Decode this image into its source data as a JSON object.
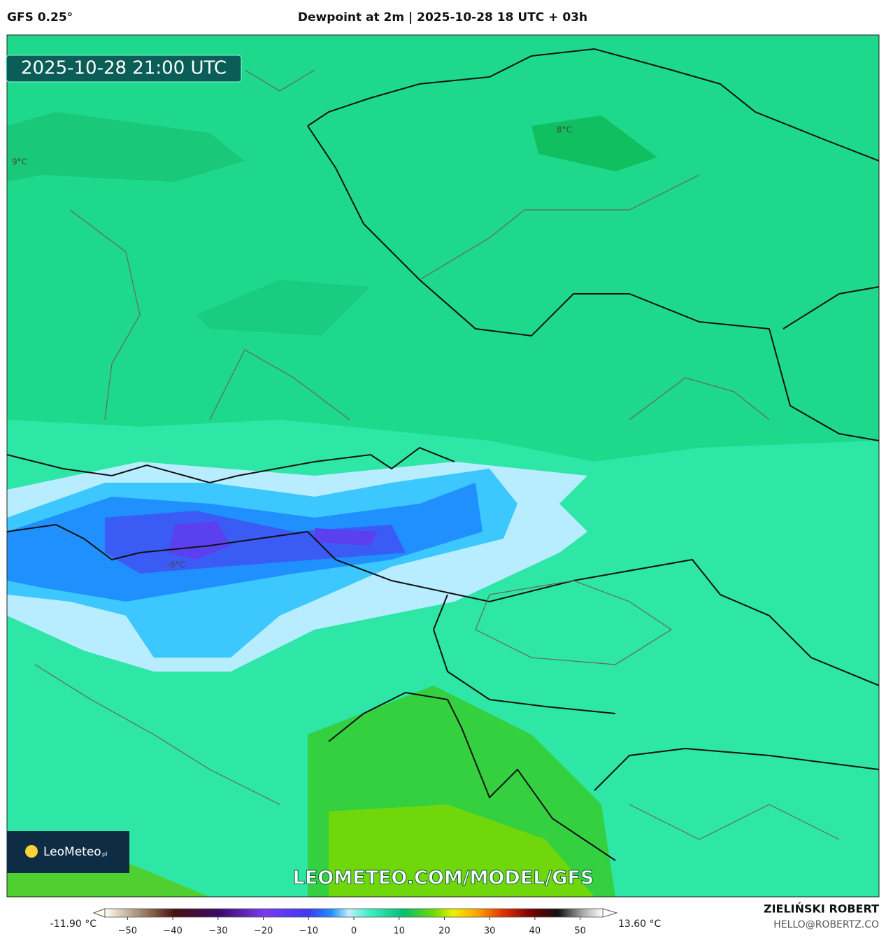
{
  "header": {
    "left": "GFS 0.25°",
    "title": "Dewpoint at 2m | 2025-10-28 18 UTC + 03h"
  },
  "map": {
    "timestamp": "2025-10-28 21:00 UTC",
    "logo": "LeoMeteo",
    "logo_suffix": "pl",
    "watermark": "LEOMETEO.COM/MODEL/GFS",
    "contour_labels": [
      "8°C",
      "-9°C",
      "9°C"
    ]
  },
  "colorbar": {
    "min_label": "-11.90 °C",
    "max_label": "13.60 °C",
    "lim": [
      -55,
      55
    ],
    "ticks": [
      {
        "value": -50,
        "label": "−50"
      },
      {
        "value": -40,
        "label": "−40"
      },
      {
        "value": -30,
        "label": "−30"
      },
      {
        "value": -20,
        "label": "−20"
      },
      {
        "value": -10,
        "label": "−10"
      },
      0,
      10,
      20,
      30,
      40,
      50
    ]
  },
  "footer": {
    "author": "ZIELIŃSKI ROBERT",
    "email": "HELLO@ROBERTZ.CO"
  }
}
